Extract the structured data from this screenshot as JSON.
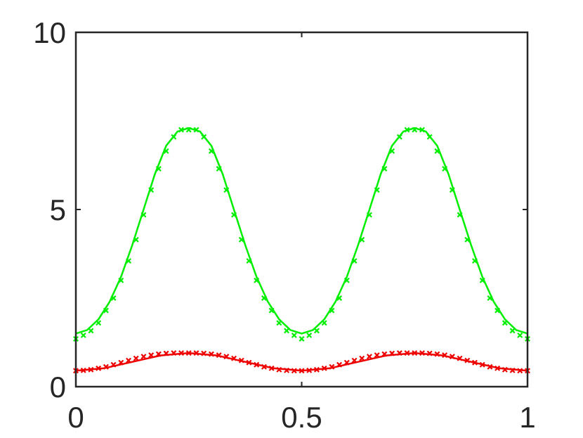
{
  "chart_data": {
    "type": "line",
    "title": "",
    "xlabel": "",
    "ylabel": "",
    "xlim": [
      0,
      1
    ],
    "ylim": [
      0,
      10
    ],
    "xticks": [
      0,
      0.5,
      1
    ],
    "xtick_labels": [
      "0",
      "0.5",
      "1"
    ],
    "yticks": [
      0,
      5,
      10
    ],
    "ytick_labels": [
      "0",
      "5",
      "10"
    ],
    "grid": false,
    "legend": "none",
    "series": [
      {
        "style": "line",
        "color": "#00ee00",
        "x": [
          0,
          0.025,
          0.05,
          0.075,
          0.1,
          0.125,
          0.15,
          0.175,
          0.2,
          0.225,
          0.25,
          0.275,
          0.3,
          0.325,
          0.35,
          0.375,
          0.4,
          0.425,
          0.45,
          0.475,
          0.5,
          0.525,
          0.55,
          0.575,
          0.6,
          0.625,
          0.65,
          0.675,
          0.7,
          0.725,
          0.75,
          0.775,
          0.8,
          0.825,
          0.85,
          0.875,
          0.9,
          0.925,
          0.95,
          0.975,
          1
        ],
        "y": [
          1.5,
          1.6,
          1.9,
          2.4,
          3.1,
          4.0,
          5.0,
          6.0,
          6.8,
          7.2,
          7.3,
          7.2,
          6.8,
          6.0,
          5.0,
          4.0,
          3.1,
          2.4,
          1.9,
          1.6,
          1.5,
          1.6,
          1.9,
          2.4,
          3.1,
          4.0,
          5.0,
          6.0,
          6.8,
          7.2,
          7.3,
          7.2,
          6.8,
          6.0,
          5.0,
          4.0,
          3.1,
          2.4,
          1.9,
          1.6,
          1.5
        ]
      },
      {
        "style": "markers",
        "marker": "x",
        "color": "#00ee00",
        "x": [
          0,
          0.0167,
          0.0333,
          0.05,
          0.0667,
          0.0833,
          0.1,
          0.1167,
          0.1333,
          0.15,
          0.1667,
          0.1833,
          0.2,
          0.2167,
          0.2333,
          0.25,
          0.2667,
          0.2833,
          0.3,
          0.3167,
          0.3333,
          0.35,
          0.3667,
          0.3833,
          0.4,
          0.4167,
          0.4333,
          0.45,
          0.4667,
          0.4833,
          0.5,
          0.5167,
          0.5333,
          0.55,
          0.5667,
          0.5833,
          0.6,
          0.6167,
          0.6333,
          0.65,
          0.6667,
          0.6833,
          0.7,
          0.7167,
          0.7333,
          0.75,
          0.7667,
          0.7833,
          0.8,
          0.8167,
          0.8333,
          0.85,
          0.8667,
          0.8833,
          0.9,
          0.9167,
          0.9333,
          0.95,
          0.9667,
          0.9833,
          1
        ],
        "y": [
          1.35,
          1.45,
          1.58,
          1.8,
          2.15,
          2.5,
          3.0,
          3.55,
          4.15,
          4.85,
          5.55,
          6.15,
          6.65,
          7.05,
          7.25,
          7.25,
          7.25,
          7.05,
          6.65,
          6.15,
          5.55,
          4.85,
          4.15,
          3.55,
          3.0,
          2.5,
          2.15,
          1.8,
          1.58,
          1.45,
          1.35,
          1.45,
          1.58,
          1.8,
          2.15,
          2.5,
          3.0,
          3.55,
          4.15,
          4.85,
          5.55,
          6.15,
          6.65,
          7.05,
          7.25,
          7.25,
          7.25,
          7.05,
          6.65,
          6.15,
          5.55,
          4.85,
          4.15,
          3.55,
          3.0,
          2.5,
          2.15,
          1.8,
          1.58,
          1.45,
          1.35
        ]
      },
      {
        "style": "line",
        "color": "#ee0000",
        "x": [
          0,
          0.0625,
          0.125,
          0.1875,
          0.25,
          0.3125,
          0.375,
          0.4375,
          0.5,
          0.5625,
          0.625,
          0.6875,
          0.75,
          0.8125,
          0.875,
          0.9375,
          1
        ],
        "y": [
          0.45,
          0.52,
          0.7,
          0.88,
          0.95,
          0.88,
          0.7,
          0.52,
          0.45,
          0.52,
          0.7,
          0.88,
          0.95,
          0.88,
          0.7,
          0.52,
          0.45
        ]
      },
      {
        "style": "markers",
        "marker": "x",
        "color": "#ee0000",
        "x": [
          0,
          0.0167,
          0.0333,
          0.05,
          0.0667,
          0.0833,
          0.1,
          0.1167,
          0.1333,
          0.15,
          0.1667,
          0.1833,
          0.2,
          0.2167,
          0.2333,
          0.25,
          0.2667,
          0.2833,
          0.3,
          0.3167,
          0.3333,
          0.35,
          0.3667,
          0.3833,
          0.4,
          0.4167,
          0.4333,
          0.45,
          0.4667,
          0.4833,
          0.5,
          0.5167,
          0.5333,
          0.55,
          0.5667,
          0.5833,
          0.6,
          0.6167,
          0.6333,
          0.65,
          0.6667,
          0.6833,
          0.7,
          0.7167,
          0.7333,
          0.75,
          0.7667,
          0.7833,
          0.8,
          0.8167,
          0.8333,
          0.85,
          0.8667,
          0.8833,
          0.9,
          0.9167,
          0.9333,
          0.95,
          0.9667,
          0.9833,
          1
        ],
        "y": [
          0.45,
          0.46,
          0.48,
          0.52,
          0.56,
          0.62,
          0.68,
          0.74,
          0.8,
          0.85,
          0.89,
          0.92,
          0.94,
          0.95,
          0.95,
          0.95,
          0.95,
          0.94,
          0.92,
          0.89,
          0.85,
          0.8,
          0.74,
          0.68,
          0.62,
          0.56,
          0.52,
          0.48,
          0.46,
          0.45,
          0.45,
          0.46,
          0.48,
          0.52,
          0.56,
          0.62,
          0.68,
          0.74,
          0.8,
          0.85,
          0.89,
          0.92,
          0.94,
          0.95,
          0.95,
          0.95,
          0.95,
          0.94,
          0.92,
          0.89,
          0.85,
          0.8,
          0.74,
          0.68,
          0.62,
          0.56,
          0.52,
          0.48,
          0.46,
          0.45,
          0.45
        ]
      }
    ]
  },
  "style": {
    "axis_color": "#262626",
    "background": "#ffffff"
  }
}
